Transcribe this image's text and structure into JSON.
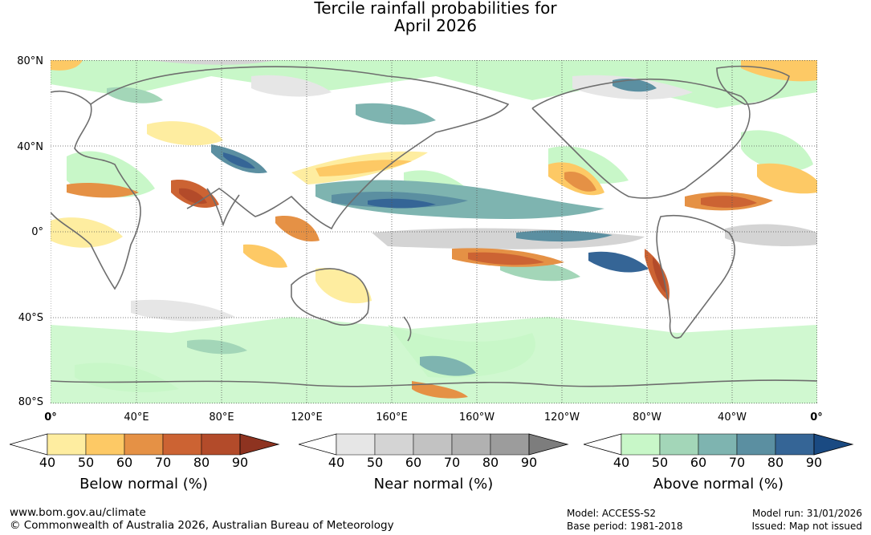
{
  "title": {
    "line1": "Tercile rainfall probabilities for",
    "line2": "April 2026"
  },
  "lat_labels": [
    "80°N",
    "40°N",
    "0°",
    "40°S",
    "80°S"
  ],
  "lon_labels": [
    "0°",
    "40°E",
    "80°E",
    "120°E",
    "160°E",
    "160°W",
    "120°W",
    "80°W",
    "40°W",
    "0°"
  ],
  "legends": [
    {
      "title": "Below normal (%)",
      "ticks": [
        "40",
        "50",
        "60",
        "70",
        "80",
        "90"
      ],
      "colors": [
        "#ffffff",
        "#feeda0",
        "#fdc965",
        "#e59145",
        "#cc6333",
        "#b34b2a",
        "#8e3320"
      ]
    },
    {
      "title": "Near normal (%)",
      "ticks": [
        "40",
        "50",
        "60",
        "70",
        "80",
        "90"
      ],
      "colors": [
        "#ffffff",
        "#e6e6e6",
        "#d4d4d4",
        "#c2c2c2",
        "#b1b1b1",
        "#9c9c9c",
        "#7d7d7d"
      ]
    },
    {
      "title": "Above normal (%)",
      "ticks": [
        "40",
        "50",
        "60",
        "70",
        "80",
        "90"
      ],
      "colors": [
        "#ffffff",
        "#c8f7c8",
        "#a3d6b8",
        "#7eb4b0",
        "#5b8fa1",
        "#356596",
        "#1a4a82"
      ]
    }
  ],
  "footer": {
    "url": "www.bom.gov.au/climate",
    "copyright": "© Commonwealth of Australia 2026, Australian Bureau of Meteorology",
    "model": "Model: ACCESS-S2",
    "base_period": "Base period: 1981-2018",
    "model_run": "Model run: 31/01/2026",
    "issued": "Issued: Map not issued"
  },
  "colors": {
    "coastline": "#6e6e6e",
    "gridline": "#555555"
  }
}
